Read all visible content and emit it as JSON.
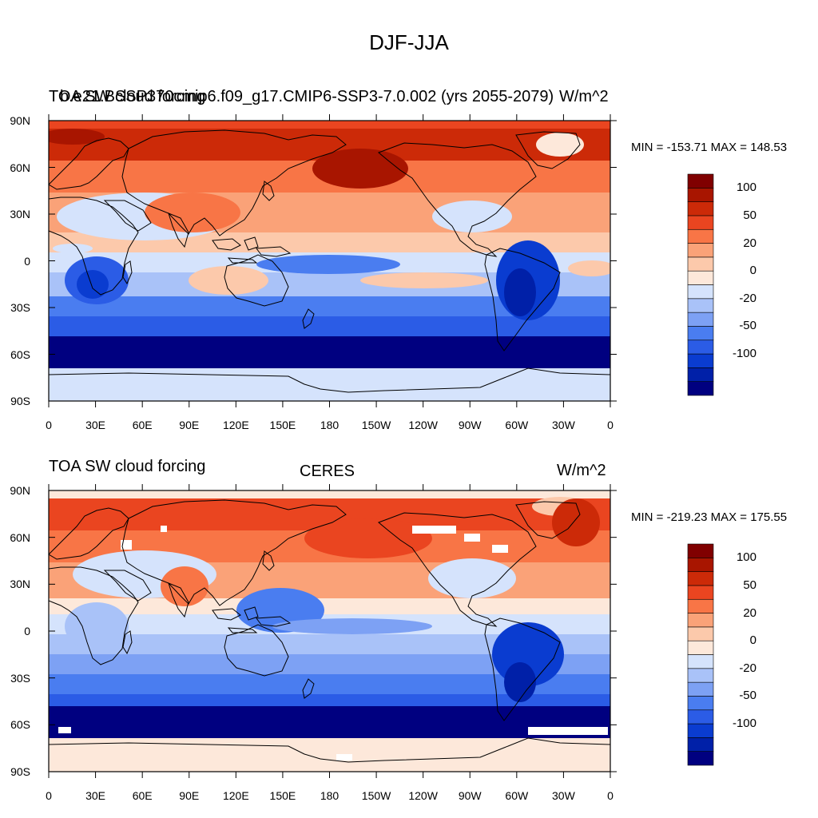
{
  "title": "DJF-JJA",
  "colors": {
    "scale": [
      "#000080",
      "#0020a8",
      "#0a3cd0",
      "#2b5ce6",
      "#4a7df0",
      "#7da1f4",
      "#a9c2f8",
      "#d5e3fc",
      "#fde8da",
      "#fcc9ab",
      "#faa278",
      "#f87546",
      "#ea4520",
      "#cc2a08",
      "#a81500",
      "#800000"
    ]
  },
  "axes": {
    "lat_labels": [
      "90N",
      "60N",
      "30N",
      "0",
      "30S",
      "60S",
      "90S"
    ],
    "lon_labels": [
      "0",
      "30E",
      "60E",
      "90E",
      "120E",
      "150E",
      "180",
      "150W",
      "120W",
      "90W",
      "60W",
      "30W",
      "0"
    ]
  },
  "panels": [
    {
      "left_title": "TOA SW cloud forcing",
      "center_title": "b.e21.BSSP370cmip6.f09_g17.CMIP6-SSP3-7.0.002 (yrs 2055-2079)",
      "units": "W/m^2",
      "minmax": "MIN = -153.71 MAX = 148.53",
      "colorbar_labels": [
        "100",
        "50",
        "20",
        "0",
        "-20",
        "-50",
        "-100"
      ]
    },
    {
      "left_title": "TOA SW cloud forcing",
      "center_title": "CERES",
      "units": "W/m^2",
      "minmax": "MIN = -219.23 MAX = 175.55",
      "colorbar_labels": [
        "100",
        "50",
        "20",
        "0",
        "-20",
        "-50",
        "-100"
      ]
    }
  ]
}
